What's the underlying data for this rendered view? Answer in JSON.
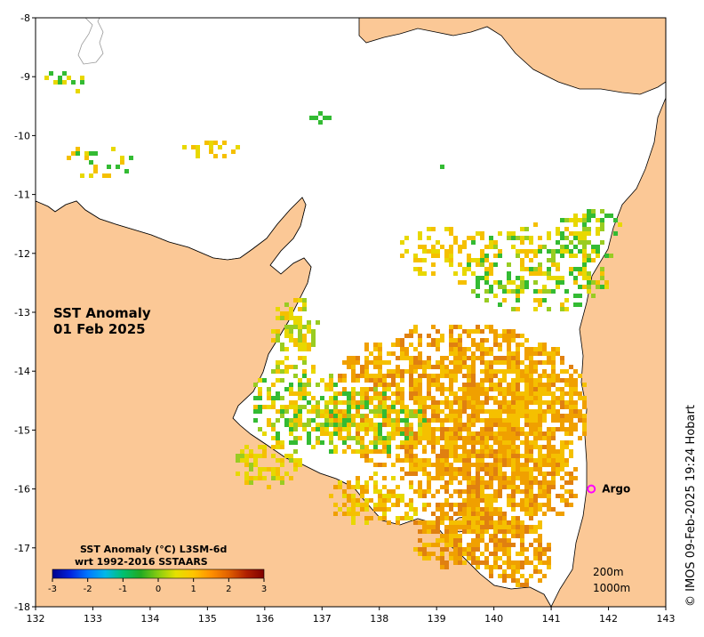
{
  "map": {
    "title_line1": "SST Anomaly",
    "title_line2": "01 Feb 2025",
    "x_ticks": [
      "132",
      "133",
      "134",
      "135",
      "136",
      "137",
      "138",
      "139",
      "140",
      "141",
      "142",
      "143"
    ],
    "y_ticks": [
      "-8",
      "-9",
      "-10",
      "-11",
      "-12",
      "-13",
      "-14",
      "-15",
      "-16",
      "-17",
      "-18"
    ],
    "lon_range": [
      132,
      143
    ],
    "lat_range": [
      -18,
      -8
    ],
    "land_color": "#fbc896",
    "ocean_color": "#ffffff"
  },
  "colorbar": {
    "title_line1": "SST Anomaly (°C) L3SM-6d",
    "title_line2": "wrt 1992-2016 SSTAARS",
    "ticks": [
      "-3",
      "-2",
      "-1",
      "0",
      "1",
      "2",
      "3"
    ],
    "range": [
      -3,
      3
    ],
    "colors": [
      "#00008c",
      "#0022dd",
      "#0077ff",
      "#00b8e8",
      "#00c070",
      "#22aa22",
      "#88cc11",
      "#e5e000",
      "#ffc400",
      "#ff9000",
      "#e06000",
      "#b02000",
      "#800000"
    ]
  },
  "argo": {
    "label": "Argo",
    "lon": 141.7,
    "lat": -16.0,
    "marker_color": "#ff00ff"
  },
  "contours": {
    "label_200": "200m",
    "label_1000": "1000m"
  },
  "credit": "© IMOS 09-Feb-2025 19:24 Hobart"
}
